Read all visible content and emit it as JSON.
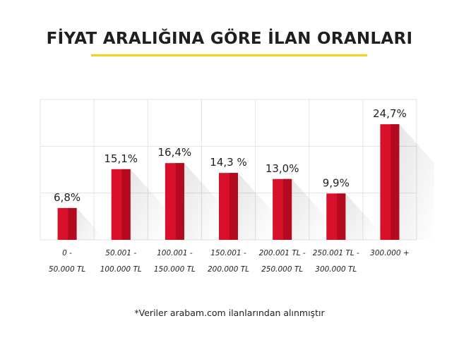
{
  "header": {
    "title": "FİYAT ARALIĞINA GÖRE İLAN ORANLARI"
  },
  "footnote": "*Veriler arabam.com ilanlarından alınmıştır",
  "colors": {
    "bar": "#d8102a",
    "bar_dark": "#b40a20",
    "grid": "#e3e3e3",
    "accent_underline": "#f5d31c"
  },
  "chart_data": {
    "type": "bar",
    "title": "FİYAT ARALIĞINA GÖRE İLAN ORANLARI",
    "categories": [
      [
        "0 -",
        "50.000 TL"
      ],
      [
        "50.001 -",
        "100.000 TL"
      ],
      [
        "100.001 -",
        "150.000 TL"
      ],
      [
        "150.001 -",
        "200.000 TL"
      ],
      [
        "200.001 TL -",
        "250.000 TL"
      ],
      [
        "250.001 TL -",
        "300.000 TL"
      ],
      [
        "300.000 +"
      ]
    ],
    "values": [
      6.8,
      15.1,
      16.4,
      14.3,
      13.0,
      9.9,
      24.7
    ],
    "data_labels": [
      "6,8%",
      "15,1%",
      "16,4%",
      "14,3 %",
      "13,0%",
      "9,9%",
      "24,7%"
    ],
    "xlabel": "",
    "ylabel": "",
    "ylim": [
      0,
      30
    ],
    "grid": true
  }
}
